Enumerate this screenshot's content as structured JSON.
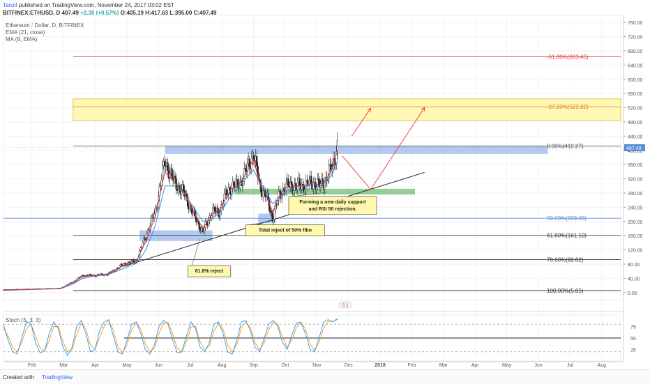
{
  "header": {
    "author": "Tanzil",
    "published": "published on TradingView.com, November 24, 2017 03:02 EST",
    "symbol": "BITFINEX:ETHUSD, D",
    "last": "407.49",
    "change": "+2.30 (+0.57%)",
    "o": "O:405.19",
    "h": "H:417.63",
    "l": "L:395.00",
    "c": "C:407.49"
  },
  "indicators": {
    "title": "Ethereum / Dollar, D, BITFINEX",
    "ema": "EMA (21, close)",
    "ma": "MA (8, EMA)",
    "stoch": "Stoch (5, 3, 3)"
  },
  "footer": {
    "created": "Created with",
    "brand": "TradingView"
  },
  "colors": {
    "candle": "#222222",
    "ema": "#2196f3",
    "ma": "#e53935",
    "stochK": "#2196f3",
    "stochD": "#ff9800",
    "zoneBlue": "#7fa6e6",
    "zoneGreen": "#4caf50",
    "zoneYellow": "#fff59d",
    "fibRed": "#e53935",
    "arrowRed": "#e53935"
  },
  "chart_data": {
    "type": "candlestick",
    "y_axis": {
      "ticks": [
        "760.00",
        "720.00",
        "680.00",
        "640.00",
        "600.00",
        "560.00",
        "520.00",
        "480.00",
        "440.00",
        "400.00",
        "360.00",
        "320.00",
        "280.00",
        "240.00",
        "200.00",
        "160.00",
        "120.00",
        "80.00",
        "40.00",
        "0.00"
      ],
      "range": [
        -20,
        780
      ],
      "current_price_label": "407.49"
    },
    "x_axis": {
      "labels": [
        "Feb",
        "Mar",
        "Apr",
        "May",
        "Jun",
        "Jul",
        "Aug",
        "Sep",
        "Oct",
        "Nov",
        "Dec",
        "2018",
        "Feb",
        "Mar",
        "Apr",
        "May",
        "Jun",
        "Jul",
        "Aug"
      ],
      "month_index": [
        1,
        2,
        3,
        4,
        5,
        6,
        7,
        8,
        9,
        10,
        11,
        12,
        13,
        14,
        15,
        16,
        17,
        18,
        19
      ],
      "range": [
        0.1,
        19.6
      ]
    },
    "price_series": [
      [
        0.1,
        8
      ],
      [
        1.0,
        10
      ],
      [
        1.9,
        12
      ],
      [
        2.3,
        30
      ],
      [
        2.6,
        48
      ],
      [
        3.0,
        48
      ],
      [
        3.4,
        52
      ],
      [
        3.9,
        80
      ],
      [
        4.3,
        90
      ],
      [
        4.6,
        160
      ],
      [
        4.9,
        230
      ],
      [
        5.2,
        370
      ],
      [
        5.3,
        350
      ],
      [
        5.5,
        310
      ],
      [
        5.8,
        280
      ],
      [
        6.1,
        220
      ],
      [
        6.4,
        170
      ],
      [
        6.7,
        230
      ],
      [
        6.9,
        225
      ],
      [
        7.1,
        270
      ],
      [
        7.3,
        300
      ],
      [
        7.5,
        300
      ],
      [
        7.7,
        330
      ],
      [
        8.0,
        390
      ],
      [
        8.2,
        300
      ],
      [
        8.4,
        270
      ],
      [
        8.6,
        210
      ],
      [
        8.8,
        270
      ],
      [
        9.0,
        300
      ],
      [
        9.3,
        300
      ],
      [
        9.5,
        300
      ],
      [
        9.7,
        305
      ],
      [
        9.9,
        310
      ],
      [
        10.1,
        300
      ],
      [
        10.3,
        320
      ],
      [
        10.5,
        360
      ],
      [
        10.65,
        412
      ]
    ],
    "ema_series": [
      [
        0.1,
        6
      ],
      [
        1.9,
        11
      ],
      [
        2.3,
        24
      ],
      [
        2.6,
        40
      ],
      [
        3.0,
        47
      ],
      [
        3.4,
        50
      ],
      [
        3.9,
        68
      ],
      [
        4.3,
        82
      ],
      [
        4.6,
        120
      ],
      [
        4.9,
        190
      ],
      [
        5.2,
        300
      ],
      [
        5.5,
        300
      ],
      [
        5.8,
        280
      ],
      [
        6.1,
        240
      ],
      [
        6.4,
        200
      ],
      [
        6.7,
        210
      ],
      [
        6.9,
        220
      ],
      [
        7.1,
        245
      ],
      [
        7.3,
        275
      ],
      [
        7.5,
        295
      ],
      [
        7.7,
        315
      ],
      [
        8.0,
        345
      ],
      [
        8.2,
        310
      ],
      [
        8.4,
        285
      ],
      [
        8.6,
        250
      ],
      [
        8.8,
        265
      ],
      [
        9.0,
        285
      ],
      [
        9.3,
        295
      ],
      [
        9.5,
        300
      ],
      [
        9.7,
        300
      ],
      [
        9.9,
        302
      ],
      [
        10.1,
        300
      ],
      [
        10.3,
        310
      ],
      [
        10.5,
        335
      ],
      [
        10.65,
        370
      ]
    ],
    "ma_series": [
      [
        0.1,
        7
      ],
      [
        1.9,
        12
      ],
      [
        2.3,
        28
      ],
      [
        2.6,
        45
      ],
      [
        3.0,
        48
      ],
      [
        3.4,
        52
      ],
      [
        3.9,
        76
      ],
      [
        4.3,
        88
      ],
      [
        4.6,
        145
      ],
      [
        4.9,
        215
      ],
      [
        5.2,
        340
      ],
      [
        5.5,
        310
      ],
      [
        5.8,
        282
      ],
      [
        6.1,
        228
      ],
      [
        6.4,
        180
      ],
      [
        6.7,
        222
      ],
      [
        6.9,
        224
      ],
      [
        7.1,
        262
      ],
      [
        7.3,
        292
      ],
      [
        7.5,
        300
      ],
      [
        7.7,
        325
      ],
      [
        8.0,
        375
      ],
      [
        8.2,
        305
      ],
      [
        8.4,
        276
      ],
      [
        8.6,
        225
      ],
      [
        8.8,
        268
      ],
      [
        9.0,
        295
      ],
      [
        9.3,
        300
      ],
      [
        9.5,
        300
      ],
      [
        9.7,
        304
      ],
      [
        9.9,
        308
      ],
      [
        10.1,
        300
      ],
      [
        10.3,
        318
      ],
      [
        10.5,
        352
      ],
      [
        10.65,
        400
      ]
    ],
    "fib_levels": [
      {
        "label": "-61.80%(663.45)",
        "price": 663.45,
        "x0": 2.3,
        "color": "#e53935"
      },
      {
        "label": "-27.20%(522.82)",
        "price": 522.82,
        "x0": 2.3,
        "color": "#e67e22"
      },
      {
        "label": "0.00%(412.27)",
        "price": 412.27,
        "x0": 2.3,
        "color": "#555555"
      },
      {
        "label": "50.00%(209.06)",
        "price": 209.06,
        "x0": 0.1,
        "color": "#5b8dd6"
      },
      {
        "label": "61.80%(161.10)",
        "price": 161.1,
        "x0": 2.3,
        "color": "#333333"
      },
      {
        "label": "78.60%(92.82)",
        "price": 92.82,
        "x0": 2.3,
        "color": "#333333"
      },
      {
        "label": "100.00%(5.85)",
        "price": 5.85,
        "x0": 2.3,
        "color": "#333333"
      }
    ],
    "zones": [
      {
        "kind": "yellow",
        "x0": 2.3,
        "x1": 19.6,
        "p0": 485,
        "p1": 545
      },
      {
        "kind": "blue",
        "x0": 5.2,
        "x1": 17.3,
        "p0": 390,
        "p1": 412
      },
      {
        "kind": "green",
        "x0": 7.4,
        "x1": 13.1,
        "p0": 276,
        "p1": 292
      },
      {
        "kind": "blue",
        "x0": 4.4,
        "x1": 6.7,
        "p0": 145,
        "p1": 175
      },
      {
        "kind": "blue",
        "x0": 8.15,
        "x1": 8.7,
        "p0": 195,
        "p1": 222
      }
    ],
    "trendline": [
      [
        3.9,
        74
      ],
      [
        13.4,
        338
      ]
    ],
    "arrows": [
      [
        [
          10.8,
          385
        ],
        [
          11.7,
          290
        ]
      ],
      [
        [
          11.7,
          290
        ],
        [
          13.4,
          520
        ]
      ],
      [
        [
          11.1,
          440
        ],
        [
          11.7,
          518
        ]
      ]
    ],
    "annotations": [
      {
        "text": "61.8% reject",
        "x": 6.6,
        "price": 60,
        "anchor": [
          6.3,
          150
        ]
      },
      {
        "text": "Total reject of 50% fibo",
        "x": 9.0,
        "price": 175,
        "anchor": [
          8.5,
          200
        ]
      },
      {
        "text": "Forming a new daily support",
        "text2": "and RSI 50 rejection.",
        "x": 10.5,
        "price": 245,
        "anchor": [
          10.3,
          282
        ]
      }
    ],
    "stoch": {
      "ticks": [
        "75",
        "50",
        "25"
      ],
      "k_series": [
        80,
        45,
        20,
        15,
        50,
        85,
        82,
        40,
        18,
        22,
        60,
        85,
        70,
        30,
        12,
        30,
        75,
        88,
        60,
        20,
        25,
        65,
        85,
        90,
        55,
        20,
        15,
        45,
        80,
        85,
        60,
        25,
        15,
        35,
        75,
        88,
        80,
        45,
        18,
        20,
        55,
        85,
        70,
        30,
        20,
        40,
        80,
        85,
        60,
        20,
        15,
        45,
        85,
        88,
        65,
        30,
        20,
        50,
        80,
        88,
        75,
        40,
        25,
        55,
        82,
        85,
        60,
        25,
        20,
        50,
        85,
        90,
        85,
        92
      ],
      "d_series": [
        70,
        55,
        30,
        20,
        40,
        70,
        80,
        55,
        28,
        22,
        45,
        75,
        75,
        42,
        20,
        25,
        58,
        82,
        70,
        35,
        25,
        50,
        75,
        88,
        68,
        32,
        18,
        35,
        68,
        82,
        70,
        38,
        20,
        28,
        60,
        82,
        84,
        58,
        28,
        20,
        42,
        74,
        75,
        42,
        25,
        33,
        65,
        82,
        70,
        35,
        20,
        35,
        72,
        85,
        72,
        40,
        24,
        40,
        68,
        84,
        80,
        52,
        30,
        45,
        72,
        84,
        70,
        38,
        24,
        40,
        72,
        86,
        86,
        90
      ],
      "x_range": [
        0.1,
        10.65
      ],
      "band_line_x0": 3.9,
      "mid_level": 50
    },
    "badge": {
      "text": "5 2",
      "x": 10.9
    }
  }
}
